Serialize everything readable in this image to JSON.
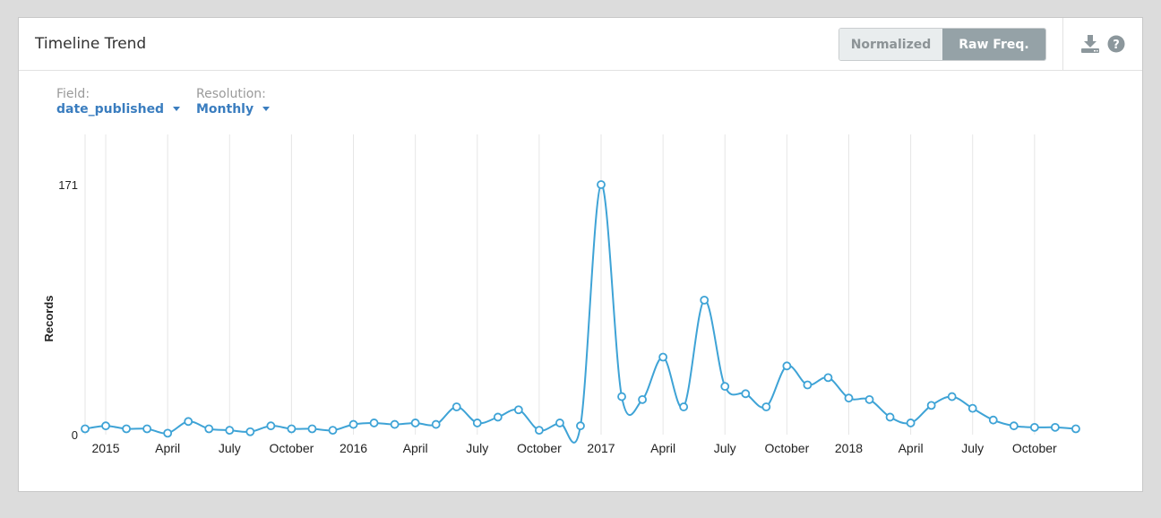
{
  "panel": {
    "title": "Timeline Trend",
    "toggle": {
      "normalized_label": "Normalized",
      "raw_label": "Raw Freq.",
      "active": "raw"
    },
    "icons": [
      "download-icon",
      "help-icon"
    ]
  },
  "controls": {
    "field": {
      "label": "Field:",
      "value": "date_published"
    },
    "resolution": {
      "label": "Resolution:",
      "value": "Monthly"
    }
  },
  "colors": {
    "line": "#3ea3d6",
    "accent": "#3a7dbf",
    "active_toggle": "#95a2a7",
    "grid": "#e6e6e6"
  },
  "chart_data": {
    "type": "line",
    "ylabel": "Records",
    "xlabel": "",
    "ylim": [
      0,
      171
    ],
    "yticks": [
      0,
      171
    ],
    "grid": "vertical",
    "x_tick_labels": [
      "2015",
      "April",
      "July",
      "October",
      "2016",
      "April",
      "July",
      "October",
      "2017",
      "April",
      "July",
      "October",
      "2018",
      "April",
      "July",
      "October"
    ],
    "x_tick_dates": [
      "2015-01",
      "2015-04",
      "2015-07",
      "2015-10",
      "2016-01",
      "2016-04",
      "2016-07",
      "2016-10",
      "2017-01",
      "2017-04",
      "2017-07",
      "2017-10",
      "2018-01",
      "2018-04",
      "2018-07",
      "2018-10"
    ],
    "series": [
      {
        "x": [
          "2014-12",
          "2015-01",
          "2015-02",
          "2015-03",
          "2015-04",
          "2015-05",
          "2015-06",
          "2015-07",
          "2015-08",
          "2015-09",
          "2015-10",
          "2015-11",
          "2015-12",
          "2016-01",
          "2016-02",
          "2016-03",
          "2016-04",
          "2016-05",
          "2016-06",
          "2016-07",
          "2016-08",
          "2016-09",
          "2016-10",
          "2016-11",
          "2016-12",
          "2017-01",
          "2017-02",
          "2017-03",
          "2017-04",
          "2017-05",
          "2017-06",
          "2017-07",
          "2017-08",
          "2017-09",
          "2017-10",
          "2017-11",
          "2017-12",
          "2018-01",
          "2018-02",
          "2018-03",
          "2018-04",
          "2018-05",
          "2018-06",
          "2018-07",
          "2018-08",
          "2018-09",
          "2018-10",
          "2018-11",
          "2018-12"
        ],
        "values": [
          4,
          6,
          4,
          4,
          1,
          9,
          4,
          3,
          2,
          6,
          4,
          4,
          3,
          7,
          8,
          7,
          8,
          7,
          19,
          8,
          12,
          17,
          3,
          8,
          6,
          171,
          26,
          24,
          53,
          19,
          92,
          33,
          28,
          19,
          47,
          34,
          39,
          25,
          24,
          12,
          8,
          20,
          26,
          18,
          10,
          6,
          5,
          5,
          4
        ]
      }
    ]
  }
}
